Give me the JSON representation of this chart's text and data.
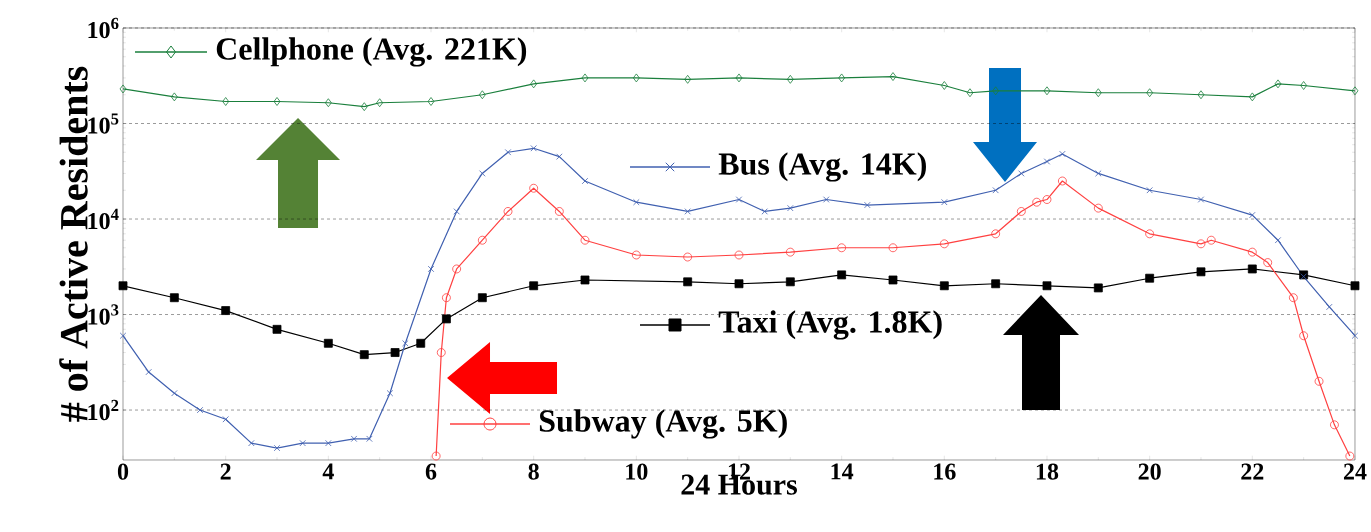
{
  "chart_data": {
    "type": "line",
    "xlabel": "24 Hours",
    "ylabel": "# of Active Residents",
    "log": "y",
    "grid": "y",
    "legend": "center",
    "xlim": [
      0,
      24
    ],
    "xticks": [
      0,
      2,
      4,
      6,
      8,
      10,
      12,
      14,
      16,
      18,
      20,
      22,
      24
    ],
    "ylim": [
      30,
      1000000
    ],
    "yticks": [
      {
        "value": 100,
        "label": "10$^{2}$"
      },
      {
        "value": 1000,
        "label": "10$^{3}$"
      },
      {
        "value": 10000,
        "label": "10$^{4}$"
      },
      {
        "value": 100000,
        "label": "10$^{5}$"
      },
      {
        "value": 1000000,
        "label": "10$^{6}$"
      }
    ],
    "series": [
      {
        "name": "Cellphone (Avg. 221K)",
        "color": "#1a7f3c",
        "marker": "diamond",
        "x": [
          0,
          1,
          2,
          3,
          4,
          4.7,
          5,
          6,
          7,
          8,
          9,
          10,
          11,
          12,
          13,
          14,
          15,
          16,
          16.5,
          17,
          18,
          19,
          20,
          21,
          22,
          22.5,
          23,
          24
        ],
        "values": [
          230000,
          190000,
          170000,
          170000,
          165000,
          150000,
          165000,
          170000,
          200000,
          260000,
          300000,
          300000,
          290000,
          300000,
          290000,
          300000,
          310000,
          250000,
          210000,
          220000,
          220000,
          210000,
          210000,
          200000,
          190000,
          260000,
          250000,
          220000
        ]
      },
      {
        "name": "Bus (Avg. 14K)",
        "color": "#4060b0",
        "marker": "cross",
        "x": [
          0,
          0.5,
          1,
          1.5,
          2,
          2.5,
          3,
          3.5,
          4,
          4.5,
          4.8,
          5.2,
          5.5,
          6,
          6.5,
          7,
          7.5,
          8,
          8.5,
          9,
          10,
          11,
          12,
          12.5,
          13,
          13.7,
          14.5,
          16,
          17,
          17.5,
          18,
          18.3,
          19,
          20,
          21,
          22,
          22.5,
          23,
          23.5,
          24
        ],
        "values": [
          600,
          250,
          150,
          100,
          80,
          45,
          40,
          45,
          45,
          50,
          50,
          150,
          500,
          3000,
          12000,
          30000,
          50000,
          55000,
          45000,
          25000,
          15000,
          12000,
          16000,
          12000,
          13000,
          16000,
          14000,
          15000,
          20000,
          30000,
          40000,
          48000,
          30000,
          20000,
          16000,
          11000,
          6000,
          2500,
          1200,
          600
        ]
      },
      {
        "name": "Subway (Avg. 5K)",
        "color": "#ff4040",
        "marker": "circle",
        "x": [
          6.1,
          6.2,
          6.3,
          6.5,
          7,
          7.5,
          8,
          8.5,
          9,
          10,
          11,
          12,
          13,
          14,
          15,
          16,
          17,
          17.5,
          17.8,
          18,
          18.3,
          19,
          20,
          21,
          21.2,
          22,
          22.3,
          22.8,
          23,
          23.3,
          23.6,
          23.9
        ],
        "values": [
          33,
          400,
          1500,
          3000,
          6000,
          12000,
          21000,
          12000,
          6000,
          4200,
          4000,
          4200,
          4500,
          5000,
          5000,
          5500,
          7000,
          12000,
          15000,
          16000,
          25000,
          13000,
          7000,
          5500,
          6000,
          4500,
          3500,
          1500,
          600,
          200,
          70,
          33
        ]
      },
      {
        "name": "Taxi (Avg. 1.8K)",
        "color": "#000000",
        "marker": "square",
        "x": [
          0,
          1,
          2,
          3,
          4,
          4.7,
          5.3,
          5.8,
          6.3,
          7,
          8,
          9,
          11,
          12,
          13,
          14,
          15,
          16,
          17,
          18,
          19,
          20,
          21,
          22,
          23,
          24
        ],
        "values": [
          2000,
          1500,
          1100,
          700,
          500,
          380,
          400,
          500,
          900,
          1500,
          2000,
          2300,
          2200,
          2100,
          2200,
          2600,
          2300,
          2000,
          2100,
          2000,
          1900,
          2400,
          2800,
          3000,
          2600,
          2000
        ]
      }
    ]
  }
}
